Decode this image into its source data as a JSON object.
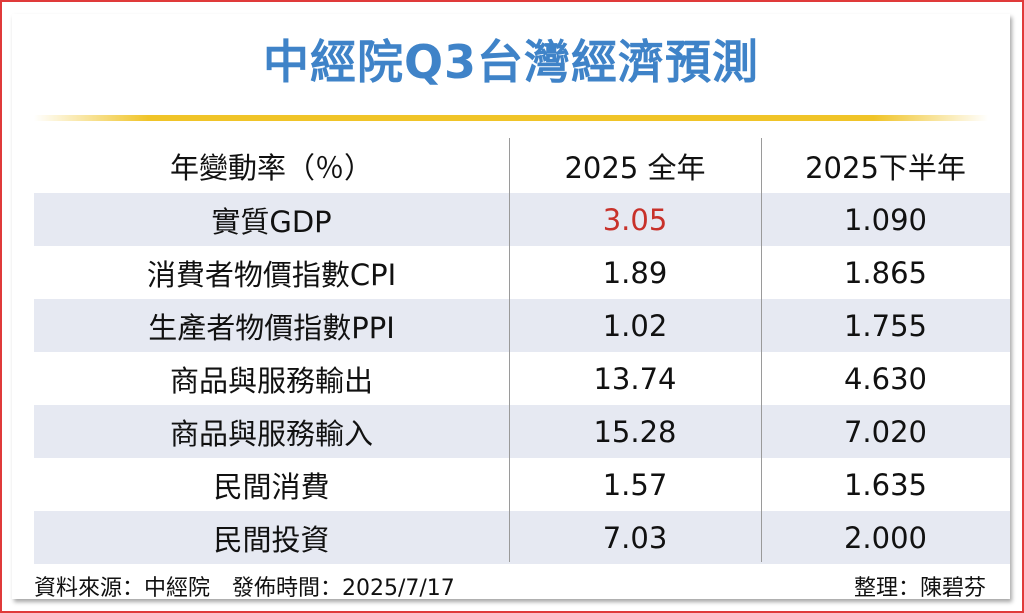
{
  "title": "中經院Q3台灣經濟預測",
  "colors": {
    "title": "#3f83c8",
    "accent_rule": "#f0c428",
    "highlight": "#c8312a",
    "border": "#e03a3a"
  },
  "table": {
    "headers": [
      "年變動率（％）",
      "2025 全年",
      "2025下半年"
    ],
    "rows": [
      {
        "label": "實質GDP",
        "full_year": "3.05",
        "h2": "1.090"
      },
      {
        "label": "消費者物價指數CPI",
        "full_year": "1.89",
        "h2": "1.865"
      },
      {
        "label": "生產者物價指數PPI",
        "full_year": "1.02",
        "h2": "1.755"
      },
      {
        "label": "商品與服務輸出",
        "full_year": "13.74",
        "h2": "4.630"
      },
      {
        "label": "商品與服務輸入",
        "full_year": "15.28",
        "h2": "7.020"
      },
      {
        "label": "民間消費",
        "full_year": "1.57",
        "h2": "1.635"
      },
      {
        "label": "民間投資",
        "full_year": "7.03",
        "h2": "2.000"
      }
    ]
  },
  "footer": {
    "source": "資料來源：中經院　發佈時間：2025/7/17",
    "editor": "整理：陳碧芬"
  }
}
